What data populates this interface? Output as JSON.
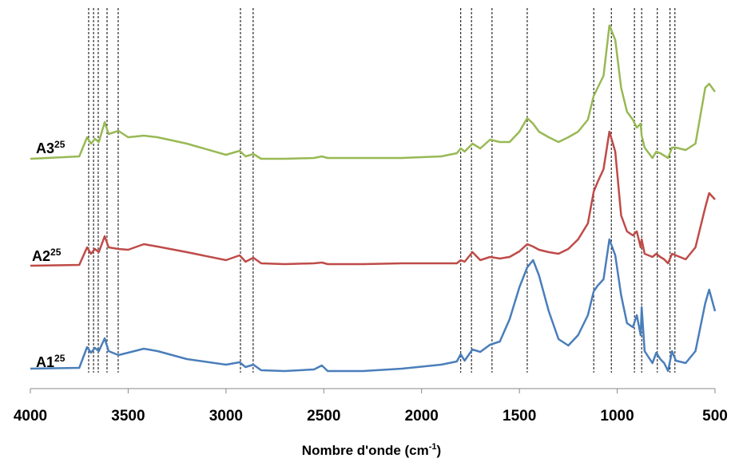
{
  "chart_data": {
    "type": "line",
    "xlabel": "Nombre d'onde (cm",
    "xlabel_superscript": "-1",
    "xlabel_end": ")",
    "xlim": [
      4000,
      500
    ],
    "xticks": [
      4000,
      3500,
      3000,
      2500,
      2000,
      1500,
      1000,
      500
    ],
    "ylim": [
      0,
      462
    ],
    "reference_lines": [
      3702,
      3677,
      3653,
      3608,
      3551,
      2926,
      2861,
      1800,
      1745,
      1640,
      1460,
      1120,
      1030,
      912,
      875,
      795,
      730,
      705
    ],
    "x": [
      4000,
      3750,
      3710,
      3690,
      3670,
      3650,
      3620,
      3600,
      3550,
      3500,
      3420,
      3350,
      3200,
      3000,
      2930,
      2900,
      2860,
      2820,
      2700,
      2550,
      2510,
      2480,
      2300,
      2100,
      1900,
      1820,
      1800,
      1780,
      1740,
      1700,
      1650,
      1600,
      1550,
      1500,
      1460,
      1430,
      1400,
      1350,
      1300,
      1250,
      1200,
      1150,
      1120,
      1100,
      1070,
      1040,
      1010,
      980,
      950,
      920,
      900,
      880,
      875,
      860,
      820,
      800,
      780,
      760,
      740,
      720,
      700,
      650,
      600,
      550,
      530,
      500
    ],
    "series": [
      {
        "name": "A1",
        "name_superscript": "25",
        "color": "#4a7ebb",
        "values": [
          25,
          26,
          52,
          45,
          51,
          47,
          63,
          47,
          42,
          45,
          50,
          47,
          37,
          30,
          33,
          27,
          30,
          23,
          22,
          24,
          29,
          22,
          22,
          25,
          30,
          34,
          43,
          35,
          49,
          46,
          55,
          59,
          87,
          127,
          152,
          161,
          142,
          97,
          62,
          54,
          67,
          92,
          122,
          129,
          137,
          187,
          167,
          117,
          82,
          77,
          92,
          67,
          102,
          47,
          32,
          45,
          37,
          32,
          22,
          47,
          35,
          32,
          47,
          107,
          124,
          97
        ]
      },
      {
        "name": "A2",
        "name_superscript": "25",
        "color": "#be4b48",
        "values": [
          154,
          155,
          177,
          169,
          175,
          171,
          191,
          177,
          175,
          174,
          181,
          178,
          171,
          161,
          167,
          159,
          164,
          157,
          156,
          157,
          158,
          156,
          156,
          157,
          157,
          157,
          161,
          159,
          171,
          161,
          165,
          163,
          165,
          172,
          181,
          178,
          174,
          171,
          169,
          175,
          187,
          207,
          247,
          259,
          275,
          322,
          297,
          217,
          197,
          192,
          197,
          177,
          187,
          169,
          165,
          169,
          165,
          162,
          157,
          169,
          167,
          162,
          177,
          227,
          245,
          237
        ]
      },
      {
        "name": "A3",
        "name_superscript": "25",
        "color": "#98b954",
        "values": [
          288,
          291,
          315,
          307,
          313,
          309,
          334,
          319,
          323,
          315,
          317,
          315,
          307,
          293,
          298,
          291,
          294,
          288,
          288,
          289,
          291,
          289,
          289,
          289,
          291,
          295,
          301,
          297,
          307,
          301,
          312,
          309,
          309,
          322,
          339,
          332,
          322,
          315,
          309,
          315,
          322,
          337,
          367,
          377,
          392,
          455,
          437,
          377,
          347,
          337,
          327,
          332,
          317,
          302,
          289,
          297,
          295,
          292,
          289,
          302,
          302,
          299,
          307,
          377,
          382,
          372
        ]
      }
    ]
  }
}
